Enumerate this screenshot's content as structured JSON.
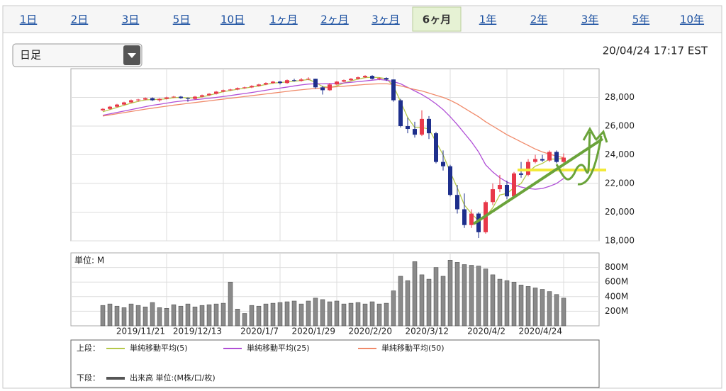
{
  "tabs": [
    "1日",
    "2日",
    "3日",
    "5日",
    "10日",
    "1ヶ月",
    "2ヶ月",
    "3ヶ月",
    "6ヶ月",
    "1年",
    "2年",
    "3年",
    "5年",
    "10年"
  ],
  "active_tab": 8,
  "dropdown": "日足",
  "timestamp": "20/04/24 17:17 EST",
  "chart_data": [
    {
      "type": "candlestick",
      "panel_label": "上段：",
      "up_color": "#e8394a",
      "down_color": "#1e2f8c",
      "open": [
        27100,
        27200,
        27350,
        27500,
        27650,
        27800,
        27850,
        27950,
        27800,
        27900,
        28000,
        28050,
        27950,
        27900,
        28050,
        28150,
        28250,
        28400,
        28500,
        28550,
        28650,
        28700,
        28800,
        28900,
        29000,
        29100,
        29000,
        29200,
        29150,
        29250,
        29300,
        28700,
        28500,
        28900,
        29100,
        29200,
        29300,
        29400,
        29500,
        29300,
        29350,
        29250,
        27800,
        26000,
        25800,
        25400,
        26500,
        25500,
        23500,
        23200,
        21200,
        20200,
        19100,
        19900,
        18600,
        20700,
        21600,
        21900,
        21100,
        22700,
        22600,
        23500,
        23700,
        23600,
        24200,
        23500
      ],
      "high": [
        27250,
        27400,
        27550,
        27700,
        27850,
        27900,
        28000,
        28000,
        27950,
        28050,
        28100,
        28100,
        28000,
        28100,
        28200,
        28300,
        28450,
        28550,
        28600,
        28700,
        28750,
        28850,
        28950,
        29050,
        29150,
        29150,
        29250,
        29300,
        29350,
        29400,
        29300,
        28800,
        29000,
        29150,
        29250,
        29350,
        29450,
        29550,
        29550,
        29400,
        29400,
        29250,
        27900,
        26600,
        26300,
        27100,
        26700,
        25600,
        24300,
        23300,
        21900,
        21300,
        20200,
        20000,
        20800,
        22000,
        22600,
        22200,
        22800,
        23500,
        23700,
        24000,
        24000,
        24300,
        24300,
        24100
      ],
      "low": [
        27050,
        27150,
        27300,
        27450,
        27600,
        27700,
        27800,
        27750,
        27700,
        27850,
        27950,
        27900,
        27700,
        27850,
        28000,
        28100,
        28200,
        28350,
        28450,
        28500,
        28600,
        28650,
        28750,
        28850,
        28950,
        28900,
        28950,
        29100,
        29100,
        29200,
        28600,
        28200,
        28450,
        28850,
        29050,
        29150,
        29250,
        29350,
        29250,
        29200,
        29150,
        27700,
        25900,
        25500,
        25200,
        25300,
        25100,
        23400,
        22900,
        21100,
        19900,
        18900,
        18900,
        18200,
        18500,
        20500,
        21400,
        20900,
        21000,
        22400,
        22500,
        23400,
        23500,
        23500,
        23400,
        23400
      ],
      "close": [
        27200,
        27350,
        27500,
        27650,
        27800,
        27850,
        27950,
        27800,
        27900,
        28000,
        28050,
        27950,
        27900,
        28050,
        28150,
        28250,
        28400,
        28500,
        28550,
        28650,
        28700,
        28800,
        28900,
        29000,
        29100,
        29000,
        29200,
        29150,
        29250,
        29300,
        28700,
        28500,
        28900,
        29100,
        29200,
        29300,
        29400,
        29500,
        29300,
        29350,
        29250,
        27800,
        26000,
        25800,
        25400,
        26500,
        25500,
        23500,
        23200,
        21200,
        20200,
        19100,
        19900,
        18600,
        20700,
        21600,
        21900,
        21100,
        22700,
        22600,
        23500,
        23700,
        23600,
        24200,
        23500,
        23800
      ],
      "series": [
        {
          "name": "単純移動平均(5)",
          "color": "#b5c84a",
          "values": [
            27000,
            27150,
            27300,
            27450,
            27600,
            27720,
            27820,
            27850,
            27860,
            27900,
            27980,
            28000,
            27970,
            27970,
            28030,
            28150,
            28270,
            28400,
            28480,
            28570,
            28640,
            28720,
            28800,
            28900,
            29000,
            29030,
            29080,
            29130,
            29180,
            29250,
            29050,
            28750,
            28700,
            28800,
            29000,
            29150,
            29270,
            29380,
            29400,
            29380,
            29300,
            28800,
            27700,
            26600,
            25900,
            25900,
            25800,
            24900,
            24000,
            22800,
            21700,
            20500,
            19900,
            19400,
            19700,
            20300,
            21200,
            21300,
            21700,
            22000,
            22800,
            23200,
            23400,
            23700,
            23700,
            23750
          ]
        },
        {
          "name": "単純移動平均(25)",
          "color": "#b04fd6",
          "values": [
            26750,
            26850,
            26950,
            27050,
            27150,
            27250,
            27350,
            27450,
            27520,
            27600,
            27680,
            27740,
            27790,
            27840,
            27890,
            27940,
            28000,
            28060,
            28130,
            28200,
            28270,
            28340,
            28420,
            28500,
            28580,
            28650,
            28720,
            28800,
            28870,
            28930,
            28950,
            28950,
            28960,
            28980,
            29000,
            29050,
            29100,
            29150,
            29200,
            29250,
            29200,
            29100,
            28950,
            28700,
            28450,
            28200,
            27900,
            27550,
            27150,
            26650,
            26100,
            25500,
            24900,
            24200,
            23300,
            22800,
            22400,
            22100,
            21900,
            21750,
            21650,
            21600,
            21650,
            21800,
            22000,
            22350
          ]
        },
        {
          "name": "単純移動平均(50)",
          "color": "#f08a6a",
          "values": [
            26700,
            26780,
            26860,
            26940,
            27020,
            27100,
            27180,
            27250,
            27320,
            27390,
            27460,
            27520,
            27580,
            27640,
            27700,
            27760,
            27820,
            27880,
            27940,
            28000,
            28060,
            28120,
            28180,
            28240,
            28300,
            28360,
            28420,
            28480,
            28530,
            28580,
            28620,
            28660,
            28700,
            28740,
            28780,
            28820,
            28860,
            28900,
            28930,
            28950,
            28950,
            28900,
            28800,
            28680,
            28550,
            28450,
            28300,
            28150,
            28000,
            27800,
            27550,
            27250,
            26950,
            26650,
            26300,
            26000,
            25700,
            25400,
            25150,
            24900,
            24650,
            24400,
            24200,
            24050,
            23900,
            23800
          ]
        }
      ],
      "ylim": [
        18000,
        30000
      ],
      "yticks": [
        {
          "value": 18000,
          "label": "18,000"
        },
        {
          "value": 20000,
          "label": "20,000"
        },
        {
          "value": 22000,
          "label": "22,000"
        },
        {
          "value": 24000,
          "label": "24,000"
        },
        {
          "value": 26000,
          "label": "26,000"
        },
        {
          "value": 28000,
          "label": "28,000"
        }
      ],
      "grid": true
    },
    {
      "type": "bar",
      "panel_label": "下段：",
      "unit_label": "単位: M",
      "categories": [
        null,
        null,
        null,
        null,
        null,
        null,
        null,
        null,
        null,
        "2019/11/21",
        null,
        null,
        null,
        null,
        null,
        null,
        null,
        "2019/12/13",
        null,
        null,
        null,
        null,
        null,
        null,
        null,
        "2020/1/7",
        null,
        null,
        null,
        null,
        null,
        null,
        null,
        "2020/1/29",
        null,
        null,
        null,
        null,
        null,
        null,
        null,
        "2020/2/20",
        null,
        null,
        null,
        null,
        null,
        null,
        null,
        "2020/3/12",
        null,
        null,
        null,
        null,
        null,
        null,
        null,
        "2020/4/2",
        null,
        null,
        null,
        null,
        null,
        null,
        null,
        "2020/4/24"
      ],
      "series": [
        {
          "name": "出来高 単位:(M株/口/枚)",
          "color": "#8a8a8a",
          "values": [
            280,
            300,
            270,
            250,
            300,
            280,
            260,
            320,
            250,
            240,
            290,
            270,
            300,
            260,
            280,
            290,
            300,
            310,
            600,
            230,
            170,
            280,
            270,
            300,
            310,
            320,
            330,
            340,
            300,
            340,
            380,
            360,
            330,
            340,
            300,
            310,
            320,
            300,
            330,
            300,
            310,
            480,
            680,
            620,
            880,
            700,
            640,
            800,
            680,
            900,
            870,
            840,
            830,
            820,
            780,
            700,
            640,
            620,
            600,
            560,
            540,
            520,
            500,
            470,
            430,
            380
          ]
        }
      ],
      "ylim": [
        0,
        1000
      ],
      "yticks": [
        {
          "value": 200,
          "label": "200M"
        },
        {
          "value": 400,
          "label": "400M"
        },
        {
          "value": 600,
          "label": "600M"
        },
        {
          "value": 800,
          "label": "800M"
        }
      ],
      "grid": true
    }
  ]
}
